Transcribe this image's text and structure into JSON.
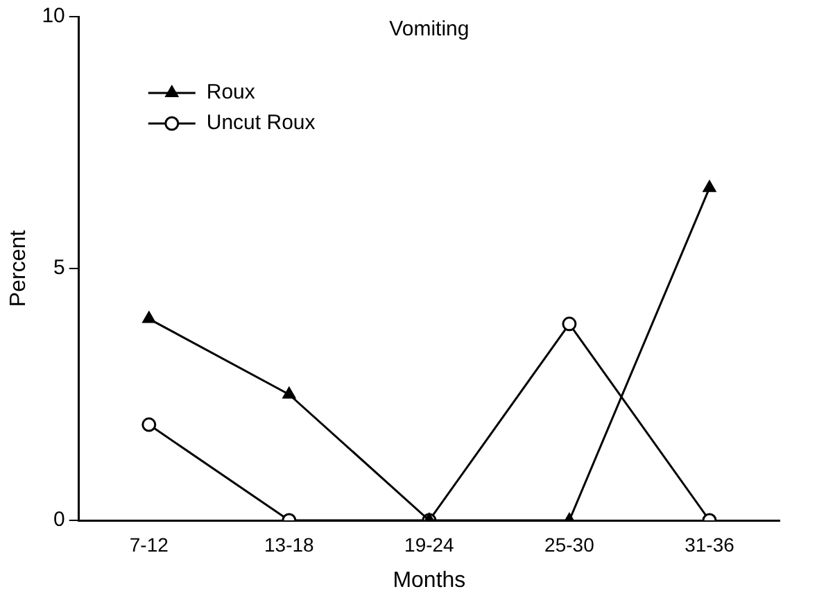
{
  "chart_data": {
    "type": "line",
    "title": "Vomiting",
    "xlabel": "Months",
    "ylabel": "Percent",
    "categories": [
      "7-12",
      "13-18",
      "19-24",
      "25-30",
      "31-36"
    ],
    "series": [
      {
        "name": "Roux",
        "color": "#000000",
        "marker": "triangle",
        "values": [
          4.0,
          2.5,
          0,
          0,
          6.6
        ]
      },
      {
        "name": "Uncut Roux",
        "color": "#000000",
        "marker": "circle",
        "values": [
          1.9,
          0,
          0,
          3.9,
          0
        ]
      }
    ],
    "ylim": [
      0,
      10
    ],
    "yticks": [
      0,
      5,
      10
    ],
    "grid": false,
    "legend": "top left",
    "line_style": "solid"
  }
}
